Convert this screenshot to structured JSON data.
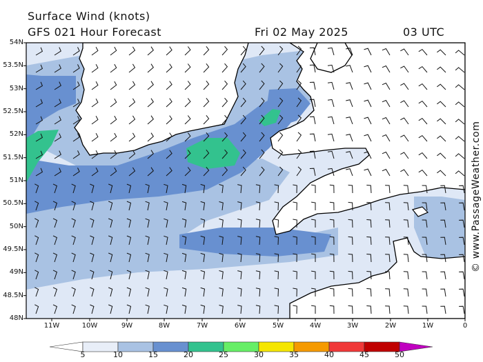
{
  "header": {
    "title": "Surface Wind (knots)",
    "subtitle": "GFS 021 Hour Forecast",
    "date": "Fri 02 May 2025",
    "time": "03 UTC"
  },
  "credit": "© www.PassageWeather.com",
  "axes": {
    "lat_labels": [
      "54N",
      "53.5N",
      "53N",
      "52.5N",
      "52N",
      "51.5N",
      "51N",
      "50.5N",
      "50N",
      "49.5N",
      "49N",
      "48.5N",
      "48N"
    ],
    "lon_labels": [
      "11W",
      "10W",
      "9W",
      "8W",
      "7W",
      "6W",
      "5W",
      "4W",
      "3W",
      "2W",
      "1W",
      "0"
    ]
  },
  "colorbar": {
    "labels": [
      "5",
      "10",
      "15",
      "20",
      "25",
      "30",
      "35",
      "40",
      "45",
      "50"
    ],
    "colors": [
      "#e8eef8",
      "#a9c2e3",
      "#6890d0",
      "#33c28e",
      "#66ee66",
      "#f5e600",
      "#f59a00",
      "#f03838",
      "#c00000",
      "#c000c0"
    ]
  },
  "colors": {
    "land": "#ffffff",
    "coast": "#000000",
    "sea_base": "#c5d6ee"
  }
}
